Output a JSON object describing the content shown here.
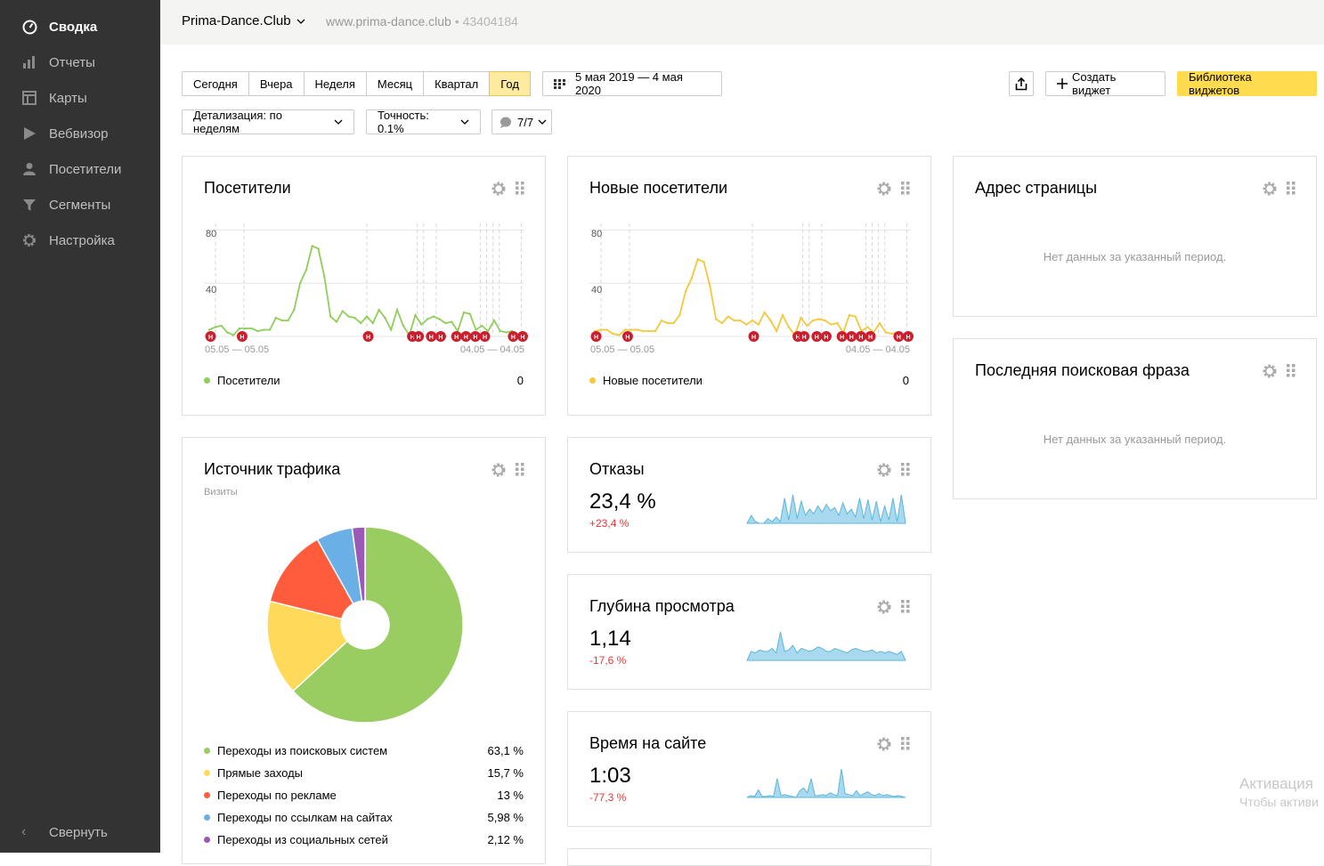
{
  "sidebar": {
    "items": [
      {
        "label": "Сводка",
        "icon": "speedometer-icon"
      },
      {
        "label": "Отчеты",
        "icon": "bar-chart-icon"
      },
      {
        "label": "Карты",
        "icon": "layout-icon"
      },
      {
        "label": "Вебвизор",
        "icon": "play-icon"
      },
      {
        "label": "Посетители",
        "icon": "person-icon"
      },
      {
        "label": "Сегменты",
        "icon": "funnel-icon"
      },
      {
        "label": "Настройка",
        "icon": "gear-icon"
      }
    ],
    "collapse_label": "Свернуть"
  },
  "header": {
    "site_name": "Prima-Dance.Club",
    "site_url": "www.prima-dance.club",
    "site_id": "• 43404184"
  },
  "toolbar": {
    "periods": [
      "Сегодня",
      "Вчера",
      "Неделя",
      "Месяц",
      "Квартал",
      "Год"
    ],
    "active_period": "Год",
    "date_range": "5 мая 2019 — 4 мая 2020",
    "detail": "Детализация: по неделям",
    "accuracy": "Точность: 0.1%",
    "segments": "7/7",
    "create_widget": "Создать виджет",
    "widget_library": "Библиотека виджетов"
  },
  "widgets": {
    "visitors": {
      "title": "Посетители",
      "y_ticks": [
        "80",
        "40"
      ],
      "x_labels": [
        "05.05 — 05.05",
        "04.05 — 04.05"
      ],
      "legend": "Посетители",
      "legend_value": "0",
      "color": "#8fce5b"
    },
    "new_visitors": {
      "title": "Новые посетители",
      "y_ticks": [
        "80",
        "40"
      ],
      "x_labels": [
        "05.05 — 05.05",
        "04.05 — 04.05"
      ],
      "legend": "Новые посетители",
      "legend_value": "0",
      "color": "#f5c83a"
    },
    "page_address": {
      "title": "Адрес страницы",
      "no_data": "Нет данных за указанный период."
    },
    "last_search": {
      "title": "Последняя поисковая фраза",
      "no_data": "Нет данных за указанный период."
    },
    "traffic": {
      "title": "Источник трафика",
      "subtitle": "Визиты",
      "items": [
        {
          "label": "Переходы из поисковых систем",
          "value": "63,1 %",
          "color": "#9acd61"
        },
        {
          "label": "Прямые заходы",
          "value": "15,7 %",
          "color": "#ffd95a"
        },
        {
          "label": "Переходы по рекламе",
          "value": "13 %",
          "color": "#ff5c3d"
        },
        {
          "label": "Переходы по ссылкам на сайтах",
          "value": "5,98 %",
          "color": "#6aafe6"
        },
        {
          "label": "Переходы из социальных сетей",
          "value": "2,12 %",
          "color": "#9b59b6"
        }
      ]
    },
    "bounce": {
      "title": "Отказы",
      "value": "23,4 %",
      "delta": "+23,4 %"
    },
    "depth": {
      "title": "Глубина просмотра",
      "value": "1,14",
      "delta": "-17,6 %"
    },
    "time": {
      "title": "Время на сайте",
      "value": "1:03",
      "delta": "-77,3 %"
    }
  },
  "annotation_letter": "H",
  "watermark": {
    "line1": "Активация",
    "line2": "Чтобы активи"
  },
  "chart_data": [
    {
      "type": "line",
      "title": "Посетители",
      "ylim": [
        0,
        85
      ],
      "series": [
        {
          "name": "Посетители",
          "values": [
            5,
            7,
            8,
            3,
            1,
            6,
            6,
            6,
            4,
            5,
            5,
            14,
            12,
            12,
            20,
            40,
            50,
            68,
            66,
            45,
            15,
            11,
            19,
            15,
            14,
            10,
            15,
            10,
            20,
            14,
            5,
            20,
            8,
            1,
            16,
            9,
            13,
            15,
            13,
            10,
            11,
            4,
            18,
            17,
            5,
            8,
            4,
            12,
            4,
            3,
            4,
            0,
            3
          ]
        }
      ]
    },
    {
      "type": "line",
      "title": "Новые посетители",
      "ylim": [
        0,
        85
      ],
      "series": [
        {
          "name": "Новые посетители",
          "values": [
            4,
            5,
            5,
            2,
            1,
            5,
            5,
            5,
            4,
            4,
            4,
            12,
            10,
            10,
            16,
            34,
            44,
            58,
            56,
            38,
            13,
            10,
            15,
            12,
            12,
            9,
            12,
            9,
            18,
            12,
            4,
            16,
            7,
            1,
            14,
            8,
            12,
            13,
            12,
            9,
            10,
            3,
            16,
            15,
            4,
            7,
            3,
            10,
            3,
            2,
            3,
            0,
            2
          ]
        }
      ]
    },
    {
      "type": "area",
      "title": "Отказы",
      "series": [
        {
          "values": [
            0,
            5,
            1,
            0,
            0,
            3,
            1,
            4,
            1,
            16,
            2,
            18,
            3,
            14,
            5,
            9,
            6,
            11,
            7,
            12,
            8,
            10,
            5,
            13,
            6,
            9,
            4,
            16,
            3,
            15,
            2,
            14,
            1,
            11,
            2,
            16,
            1,
            18,
            0
          ]
        }
      ]
    },
    {
      "type": "area",
      "title": "Глубина просмотра",
      "series": [
        {
          "values": [
            1.0,
            1.12,
            1.1,
            1.14,
            1.12,
            1.12,
            1.16,
            1.1,
            1.38,
            1.12,
            1.14,
            1.2,
            1.1,
            1.16,
            1.14,
            1.12,
            1.14,
            1.18,
            1.16,
            1.12,
            1.12,
            1.16,
            1.14,
            1.12,
            1.1,
            1.14,
            1.16,
            1.14,
            1.12,
            1.12,
            1.14,
            1.1,
            1.12,
            1.1,
            1.12,
            1.1,
            1.08,
            1.12,
            1.0
          ]
        }
      ]
    },
    {
      "type": "area",
      "title": "Время на сайте",
      "series": [
        {
          "values": [
            0,
            2,
            1,
            8,
            1,
            1,
            2,
            1,
            20,
            2,
            3,
            2,
            1,
            0,
            7,
            10,
            5,
            20,
            2,
            2,
            3,
            2,
            5,
            3,
            2,
            30,
            4,
            3,
            2,
            7,
            2,
            4,
            6,
            3,
            2,
            4,
            2,
            3,
            2,
            1,
            2,
            1,
            0
          ]
        }
      ]
    }
  ]
}
